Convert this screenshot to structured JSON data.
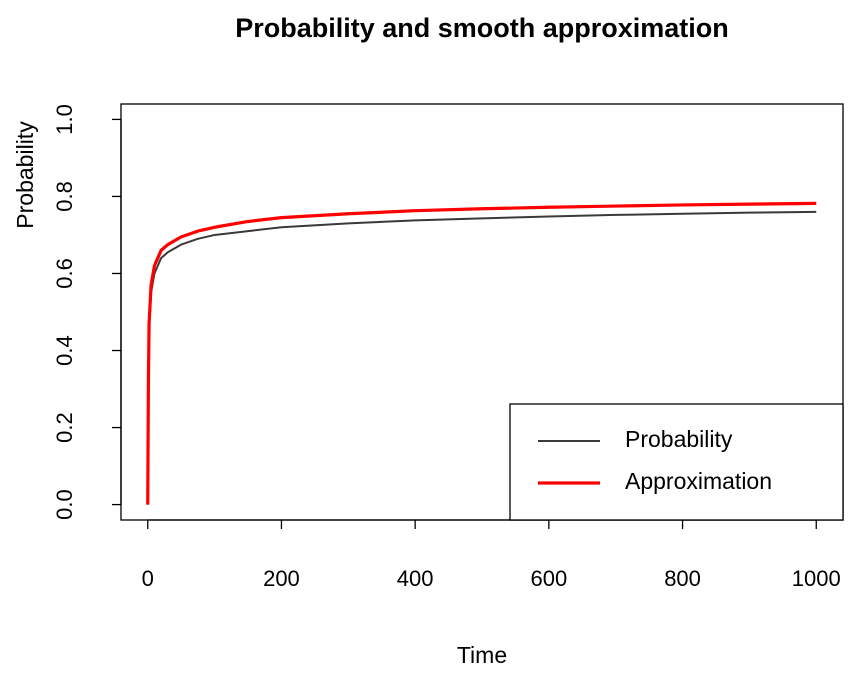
{
  "chart_data": {
    "type": "line",
    "title": "Probability and smooth approximation",
    "x_label": "Time",
    "y_label": "Probability",
    "x": [
      0,
      1,
      2,
      5,
      10,
      20,
      30,
      50,
      75,
      100,
      150,
      200,
      300,
      400,
      500,
      600,
      700,
      800,
      900,
      1000
    ],
    "series": [
      {
        "name": "Probability",
        "color": "#3a3a3a",
        "width": 2,
        "values": [
          0,
          0.3,
          0.45,
          0.55,
          0.6,
          0.64,
          0.655,
          0.675,
          0.69,
          0.7,
          0.71,
          0.72,
          0.73,
          0.738,
          0.743,
          0.748,
          0.752,
          0.755,
          0.758,
          0.76
        ]
      },
      {
        "name": "Approximation",
        "color": "#ff0000",
        "width": 3.2,
        "values": [
          0,
          0.32,
          0.47,
          0.57,
          0.62,
          0.66,
          0.675,
          0.695,
          0.71,
          0.72,
          0.735,
          0.745,
          0.755,
          0.763,
          0.768,
          0.772,
          0.775,
          0.778,
          0.78,
          0.782
        ]
      }
    ],
    "xlim": [
      -40,
      1040
    ],
    "ylim": [
      -0.04,
      1.04
    ],
    "xticks": [
      0,
      200,
      400,
      600,
      800,
      1000
    ],
    "yticks": [
      {
        "value": 0,
        "label": "0.0"
      },
      {
        "value": 0.2,
        "label": "0.2"
      },
      {
        "value": 0.4,
        "label": "0.4"
      },
      {
        "value": 0.6,
        "label": "0.6"
      },
      {
        "value": 0.8,
        "label": "0.8"
      },
      {
        "value": 1,
        "label": "1.0"
      }
    ],
    "legend": "bottomright",
    "grid": false
  }
}
